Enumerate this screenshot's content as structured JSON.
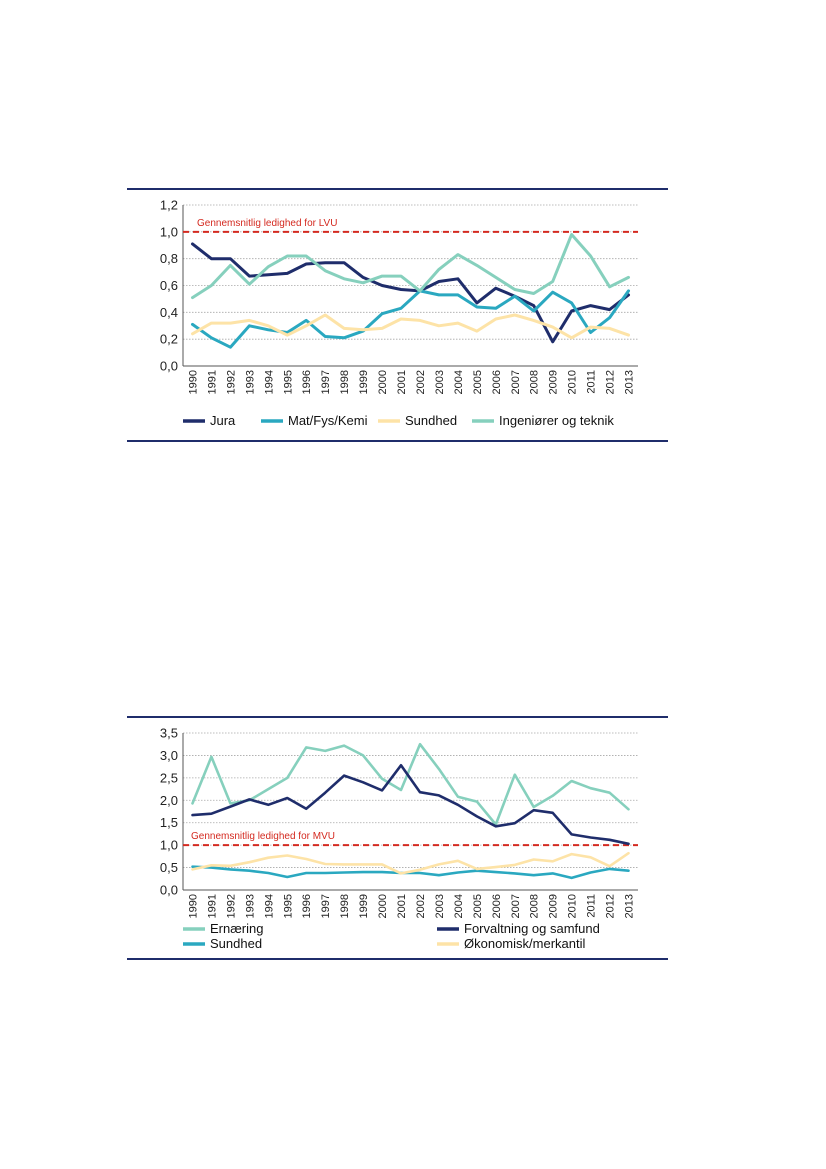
{
  "chart_data": [
    {
      "type": "line",
      "title": "",
      "xlabel": "",
      "ylabel": "",
      "ylim": [
        0,
        1.2
      ],
      "yticks": [
        "0,0",
        "0,2",
        "0,4",
        "0,6",
        "0,8",
        "1,0",
        "1,2"
      ],
      "grid": true,
      "legend_position": "bottom",
      "categories": [
        "1990",
        "1991",
        "1992",
        "1993",
        "1994",
        "1995",
        "1996",
        "1997",
        "1998",
        "1999",
        "2000",
        "2001",
        "2002",
        "2003",
        "2004",
        "2005",
        "2006",
        "2007",
        "2008",
        "2009",
        "2010",
        "2011",
        "2012",
        "2013"
      ],
      "reference_line": {
        "value": 1.0,
        "label": "Gennemsnitlig ledighed for LVU",
        "color": "#d42a20"
      },
      "series": [
        {
          "name": "Jura",
          "color": "#1f2d6b",
          "values": [
            0.91,
            0.8,
            0.8,
            0.67,
            0.68,
            0.69,
            0.76,
            0.77,
            0.77,
            0.66,
            0.6,
            0.57,
            0.56,
            0.63,
            0.65,
            0.47,
            0.58,
            0.52,
            0.45,
            0.18,
            0.41,
            0.45,
            0.42,
            0.53
          ]
        },
        {
          "name": "Mat/Fys/Kemi",
          "color": "#2aa8c0",
          "values": [
            0.31,
            0.21,
            0.14,
            0.3,
            0.27,
            0.25,
            0.34,
            0.22,
            0.21,
            0.26,
            0.39,
            0.43,
            0.56,
            0.53,
            0.53,
            0.44,
            0.43,
            0.52,
            0.41,
            0.55,
            0.47,
            0.25,
            0.36,
            0.56
          ]
        },
        {
          "name": "Sundhed",
          "color": "#fde3a7",
          "values": [
            0.24,
            0.32,
            0.32,
            0.34,
            0.3,
            0.23,
            0.3,
            0.38,
            0.28,
            0.27,
            0.28,
            0.35,
            0.34,
            0.3,
            0.32,
            0.26,
            0.35,
            0.38,
            0.34,
            0.29,
            0.21,
            0.29,
            0.28,
            0.23
          ]
        },
        {
          "name": "Ingeniører og teknik",
          "color": "#86d0bd",
          "values": [
            0.51,
            0.6,
            0.75,
            0.61,
            0.74,
            0.82,
            0.82,
            0.71,
            0.65,
            0.62,
            0.67,
            0.67,
            0.56,
            0.72,
            0.83,
            0.75,
            0.66,
            0.57,
            0.54,
            0.63,
            0.98,
            0.82,
            0.59,
            0.66
          ]
        }
      ]
    },
    {
      "type": "line",
      "title": "",
      "xlabel": "",
      "ylabel": "",
      "ylim": [
        0,
        3.5
      ],
      "yticks": [
        "0,0",
        "0,5",
        "1,0",
        "1,5",
        "2,0",
        "2,5",
        "3,0",
        "3,5"
      ],
      "grid": true,
      "legend_position": "bottom",
      "categories": [
        "1990",
        "1991",
        "1992",
        "1993",
        "1994",
        "1995",
        "1996",
        "1997",
        "1998",
        "1999",
        "2000",
        "2001",
        "2002",
        "2003",
        "2004",
        "2005",
        "2006",
        "2007",
        "2008",
        "2009",
        "2010",
        "2011",
        "2012",
        "2013"
      ],
      "reference_line": {
        "value": 1.0,
        "label": "Gennemsnitlig ledighed for MVU",
        "color": "#d42a20"
      },
      "series": [
        {
          "name": "Ernæring",
          "color": "#86d0bd",
          "values": [
            1.93,
            2.97,
            1.93,
            2.0,
            2.25,
            2.5,
            3.18,
            3.1,
            3.22,
            3.0,
            2.48,
            2.23,
            3.25,
            2.7,
            2.08,
            1.97,
            1.46,
            2.57,
            1.85,
            2.1,
            2.43,
            2.27,
            2.17,
            1.8
          ]
        },
        {
          "name": "Forvaltning og samfund",
          "color": "#1f2d6b",
          "values": [
            1.67,
            1.7,
            1.86,
            2.02,
            1.9,
            2.05,
            1.81,
            2.17,
            2.55,
            2.4,
            2.22,
            2.78,
            2.18,
            2.11,
            1.9,
            1.64,
            1.42,
            1.49,
            1.78,
            1.72,
            1.24,
            1.17,
            1.12,
            1.03
          ]
        },
        {
          "name": "Sundhed",
          "color": "#2aa8c0",
          "values": [
            0.52,
            0.5,
            0.46,
            0.43,
            0.38,
            0.29,
            0.38,
            0.38,
            0.39,
            0.4,
            0.4,
            0.38,
            0.38,
            0.33,
            0.39,
            0.43,
            0.4,
            0.37,
            0.33,
            0.37,
            0.27,
            0.39,
            0.47,
            0.43
          ]
        },
        {
          "name": "Økonomisk/merkantil",
          "color": "#fde3a7",
          "values": [
            0.46,
            0.55,
            0.54,
            0.62,
            0.72,
            0.77,
            0.69,
            0.58,
            0.57,
            0.57,
            0.57,
            0.37,
            0.45,
            0.57,
            0.65,
            0.47,
            0.51,
            0.56,
            0.68,
            0.64,
            0.8,
            0.73,
            0.53,
            0.82
          ]
        }
      ]
    }
  ]
}
